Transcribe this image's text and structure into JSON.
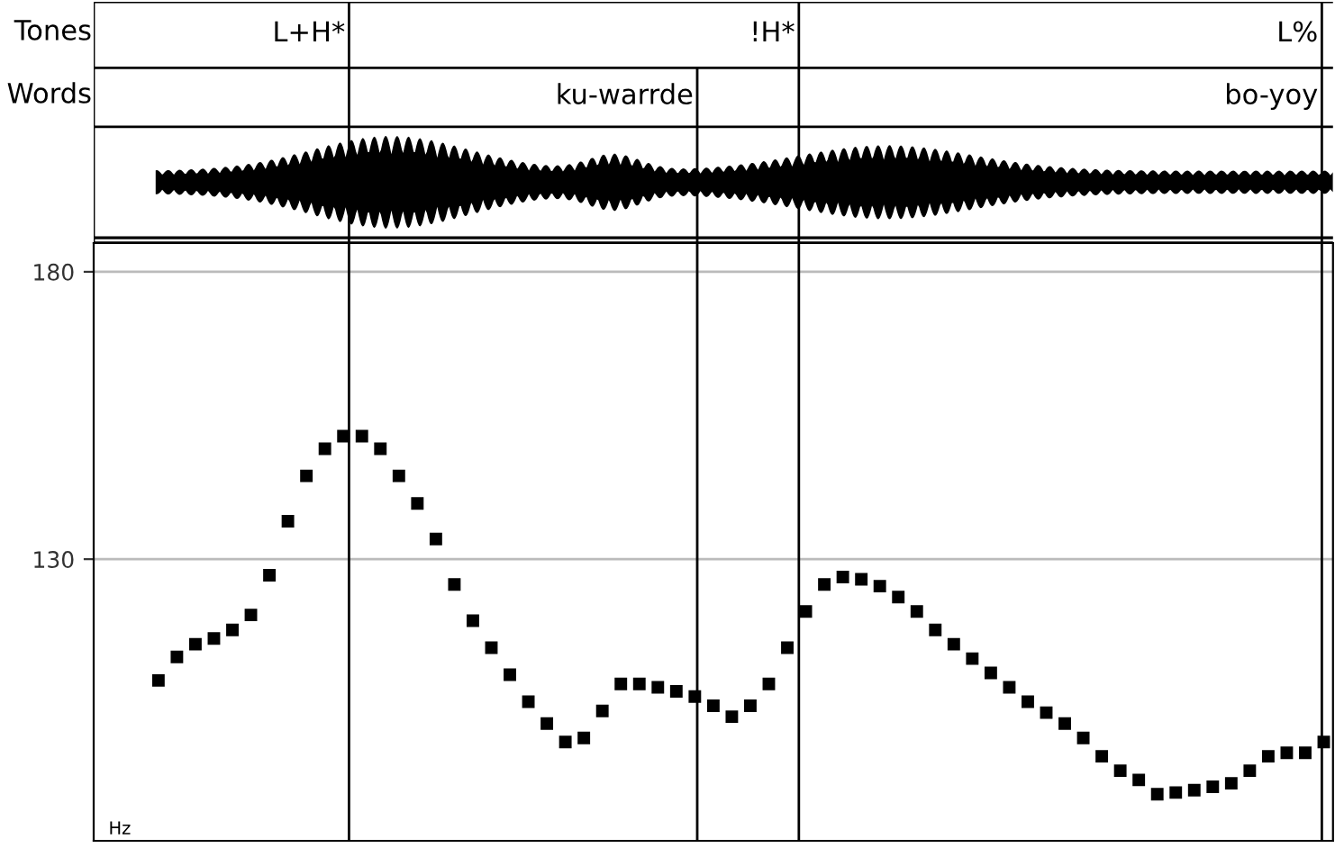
{
  "chart_data": {
    "type": "scatter",
    "ylabel": "Hz",
    "categories": [
      null,
      null,
      null,
      null,
      null,
      null,
      null,
      null,
      null,
      null,
      null,
      null,
      null,
      null,
      null,
      null,
      null,
      null,
      null,
      null,
      null,
      null,
      null,
      null,
      null,
      null,
      null,
      null,
      null,
      null,
      null,
      null,
      null,
      null,
      null,
      null,
      null,
      null,
      null,
      null,
      null,
      null,
      null,
      null,
      null,
      null,
      null,
      null,
      null,
      null,
      null,
      null,
      null,
      null,
      null,
      null,
      null,
      null,
      null,
      null,
      null,
      null,
      null,
      null,
      null,
      null,
      null
    ],
    "series": [
      {
        "color": "#000000",
        "values": [
          null,
          null,
          null,
          108.9,
          113,
          115.2,
          116.2,
          117.7,
          120.3,
          127.2,
          136.6,
          144.5,
          149.2,
          151.4,
          151.4,
          149.2,
          144.5,
          139.7,
          133.5,
          125.6,
          119.3,
          114.6,
          109.9,
          105.2,
          101.4,
          98.2,
          98.9,
          103.6,
          108.3,
          108.3,
          107.7,
          107,
          106.1,
          104.5,
          102.6,
          104.5,
          108.3,
          114.6,
          120.9,
          125.6,
          126.9,
          126.5,
          125.3,
          123.4,
          120.9,
          117.7,
          115.2,
          112.7,
          110.2,
          107.7,
          105.2,
          103.3,
          101.4,
          98.9,
          95.7,
          93.2,
          91.6,
          89.1,
          89.4,
          89.8,
          90.4,
          91,
          93.2,
          95.7,
          96.3,
          96.3,
          98.2
        ]
      }
    ],
    "ylim": [
      81,
      185
    ],
    "yticks": [
      130,
      180
    ],
    "grid": "y",
    "marker": "square",
    "annotations": [
      "Tones",
      "Words",
      "L+H*",
      "!H*",
      "L%",
      "ku-warrde",
      "bo-yoy"
    ]
  }
}
